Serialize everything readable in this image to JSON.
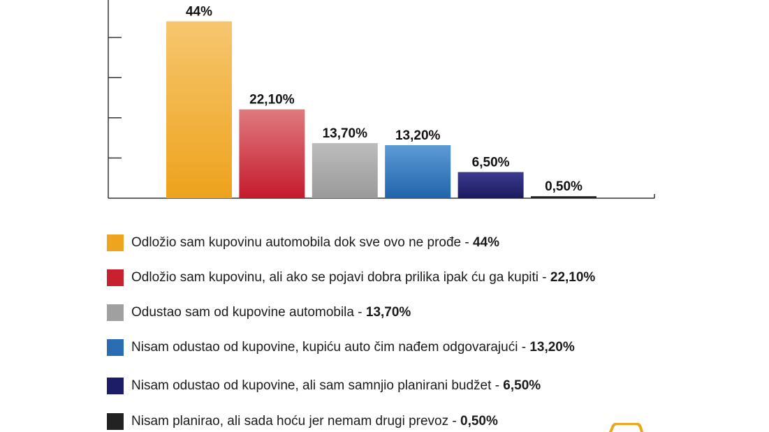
{
  "chart_data": {
    "type": "bar",
    "categories": [
      "Odložio sam kupovinu automobila dok sve ovo ne prođe",
      "Odložio sam kupovinu, ali ako se pojavi dobra prilika ipak ću ga kupiti",
      "Odustao sam od kupovine automobila",
      "Nisam odustao od kupovine, kupiću auto čim nađem odgovarajući",
      "Nisam odustao od kupovine, ali sam samnjio planirani budžet",
      "Nisam planirao, ali sada hoću jer nemam drugi prevoz"
    ],
    "values": [
      44,
      22.1,
      13.7,
      13.2,
      6.5,
      0.5
    ],
    "data_labels": [
      "44%",
      "22,10%",
      "13,70%",
      "13,20%",
      "6,50%",
      "0,50%"
    ],
    "colors": [
      [
        "#f6c66f",
        "#eea21c"
      ],
      [
        "#e07a80",
        "#c51a2c"
      ],
      [
        "#bcbcbc",
        "#9a9a9a"
      ],
      [
        "#5d9bd6",
        "#2064ab"
      ],
      [
        "#3b3b90",
        "#1c1b60"
      ],
      [
        "#333333",
        "#1a1a1a"
      ]
    ],
    "ylim": [
      0,
      50
    ],
    "yticks": [
      10,
      20,
      30,
      40,
      50
    ],
    "legend_placement": "bottom",
    "grid": false
  },
  "legend": {
    "items": [
      {
        "text": "Odložio sam kupovinu automobila dok sve ovo ne prođe",
        "sep": " - ",
        "value": "44%",
        "color": "#efa420"
      },
      {
        "text": "Odložio sam kupovinu, ali ako se pojavi dobra prilika ipak ću ga kupiti ",
        "sep": " - ",
        "value": "22,10%",
        "color": "#c8202f"
      },
      {
        "text": "Odustao sam od kupovine automobila",
        "sep": " - ",
        "value": "13,70%",
        "color": "#a0a0a0"
      },
      {
        "text": "Nisam odustao od kupovine, kupiću auto čim nađem odgovarajući ",
        "sep": " - ",
        "value": "13,20%",
        "color": "#2a6cb2"
      },
      {
        "text": "Nisam odustao od kupovine, ali sam samnjio planirani budžet ",
        "sep": " - ",
        "value": "6,50%",
        "color": "#1d1c66"
      },
      {
        "text": "Nisam planirao, ali sada hoću jer nemam drugi prevoz ",
        "sep": " - ",
        "value": "0,50%",
        "color": "#222222"
      }
    ]
  }
}
